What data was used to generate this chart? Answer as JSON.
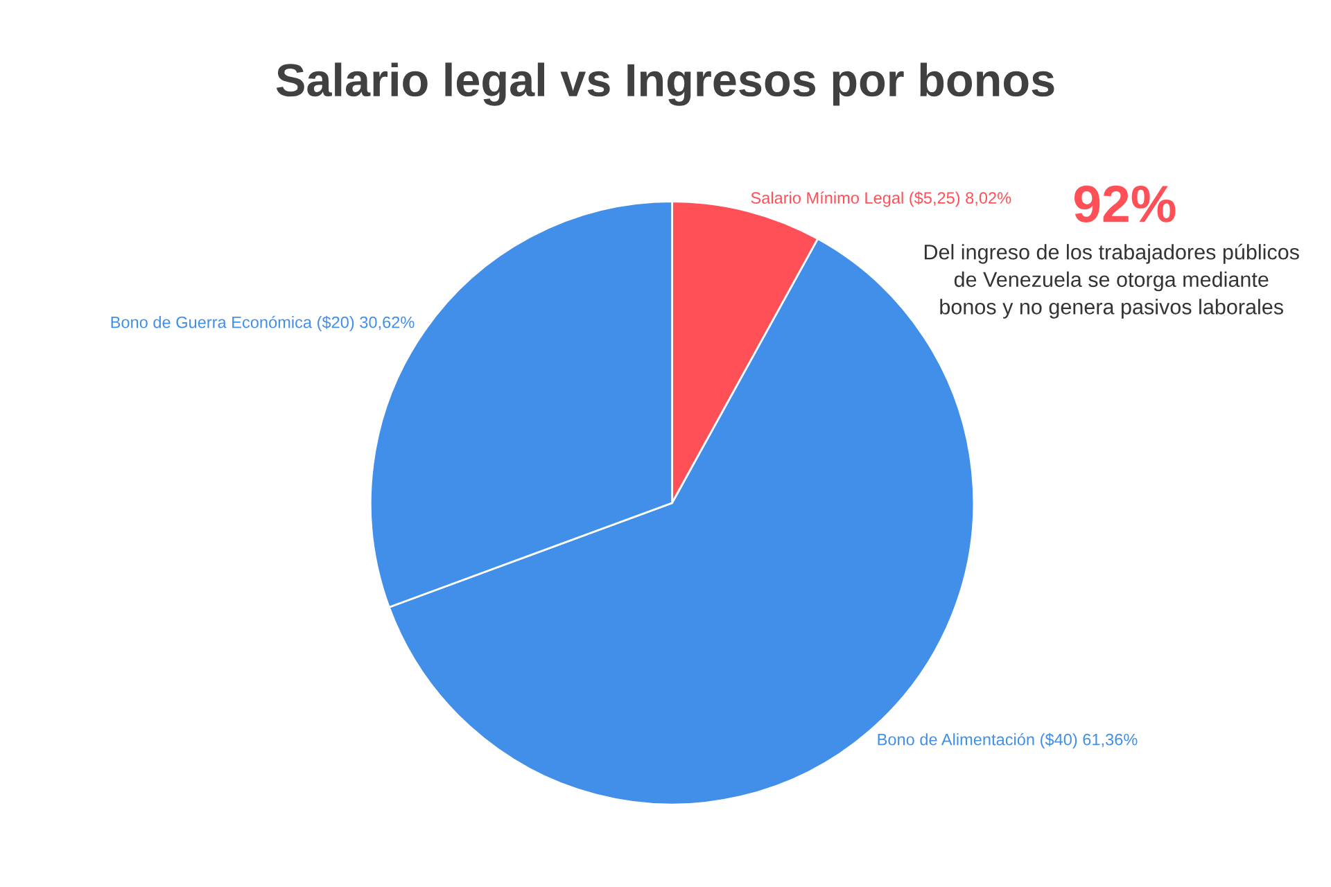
{
  "chart_data": {
    "type": "pie",
    "title": "Salario legal vs Ingresos por bonos",
    "categories": [
      "Salario Mínimo Legal ($5,25)",
      "Bono de Alimentación ($40)",
      "Bono de Guerra Económica ($20)"
    ],
    "values": [
      8.02,
      61.36,
      30.62
    ],
    "value_labels": [
      "8,02%",
      "61,36%",
      "30,62%"
    ],
    "colors": [
      "#ff5057",
      "#418fe8",
      "#418fe8"
    ],
    "annotations": [
      "92%",
      "Del ingreso de los trabajadores públicos\nde Venezuela se otorga mediante\nbonos y no genera pasivos laborales"
    ]
  }
}
